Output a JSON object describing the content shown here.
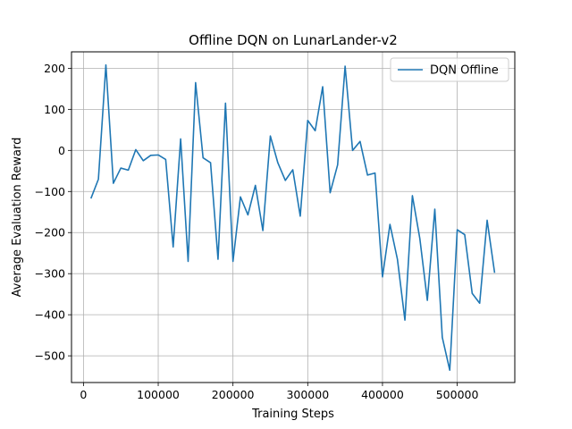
{
  "chart_data": {
    "type": "line",
    "title": "Offline DQN on LunarLander-v2",
    "xlabel": "Training Steps",
    "ylabel": "Average Evaluation Reward",
    "xlim": [
      -16000,
      577000
    ],
    "ylim": [
      -565,
      240
    ],
    "xticks": [
      0,
      100000,
      200000,
      300000,
      400000,
      500000
    ],
    "yticks": [
      -500,
      -400,
      -300,
      -200,
      -100,
      0,
      100,
      200
    ],
    "grid": true,
    "legend_position": "top-right",
    "series": [
      {
        "name": "DQN Offline",
        "color": "#1f77b4",
        "x": [
          10000,
          20000,
          30000,
          40000,
          50000,
          60000,
          70000,
          80000,
          90000,
          100000,
          110000,
          120000,
          130000,
          140000,
          150000,
          160000,
          170000,
          180000,
          190000,
          200000,
          210000,
          220000,
          230000,
          240000,
          250000,
          260000,
          270000,
          280000,
          290000,
          300000,
          310000,
          320000,
          330000,
          340000,
          350000,
          360000,
          370000,
          380000,
          390000,
          400000,
          410000,
          420000,
          430000,
          440000,
          450000,
          460000,
          470000,
          480000,
          490000,
          500000,
          510000,
          520000,
          530000,
          540000,
          550000
        ],
        "y": [
          -117,
          -70,
          208,
          -80,
          -43,
          -48,
          2,
          -25,
          -12,
          -11,
          -22,
          -235,
          28,
          -270,
          165,
          -18,
          -30,
          -265,
          115,
          -270,
          -113,
          -157,
          -85,
          -195,
          35,
          -30,
          -73,
          -47,
          -160,
          73,
          48,
          155,
          -103,
          -35,
          205,
          0,
          22,
          -60,
          -55,
          -308,
          -180,
          -265,
          -413,
          -110,
          -215,
          -365,
          -143,
          -455,
          -535,
          -193,
          -205,
          -348,
          -372,
          -170,
          -298
        ]
      }
    ]
  }
}
